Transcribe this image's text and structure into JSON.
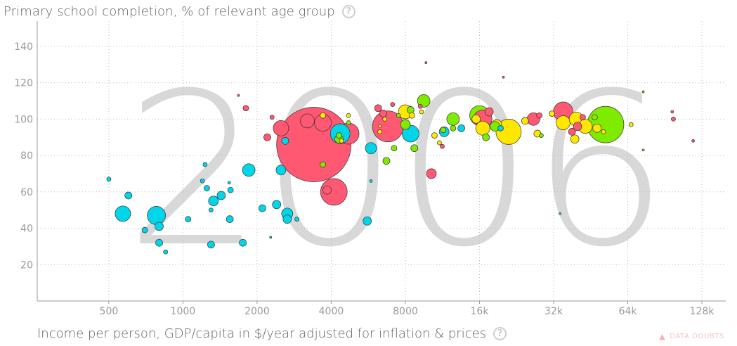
{
  "y_axis": {
    "label": "Primary school completion, % of relevant age group",
    "help_icon": "question-circle-icon"
  },
  "x_axis": {
    "label": "Income per person, GDP/capita in $/year adjusted for inflation & prices",
    "help_icon": "question-circle-icon"
  },
  "data_doubts": {
    "label": "DATA DOUBTS",
    "icon": "warning-triangle-icon"
  },
  "colors": {
    "asia": "#ff5872",
    "africa": "#00d5e9",
    "europe": "#ffe700",
    "americas": "#7feb00",
    "watermark": "#d8d8d8",
    "grid": "#bdbdbd",
    "tick_text": "#9a9a9a"
  },
  "chart_data": {
    "type": "scatter",
    "xscale": "log",
    "xlim": [
      256,
      160000
    ],
    "ylim": [
      0,
      150
    ],
    "x_ticks": [
      500,
      1000,
      2000,
      4000,
      8000,
      16000,
      32000,
      64000,
      128000
    ],
    "x_tick_labels": [
      "500",
      "1000",
      "2000",
      "4000",
      "8000",
      "16k",
      "32k",
      "64k",
      "128k"
    ],
    "y_ticks": [
      20,
      40,
      60,
      80,
      100,
      120,
      140
    ],
    "y_tick_labels": [
      "20",
      "40",
      "60",
      "80",
      "100",
      "120",
      "140"
    ],
    "grid": true,
    "watermark_year": "2006",
    "points": [
      {
        "x": 3400,
        "y": 86,
        "r": 53,
        "c": "asia"
      },
      {
        "x": 4100,
        "y": 60,
        "r": 19,
        "c": "asia"
      },
      {
        "x": 6800,
        "y": 96,
        "r": 22,
        "c": "asia"
      },
      {
        "x": 4700,
        "y": 92,
        "r": 15,
        "c": "asia"
      },
      {
        "x": 3200,
        "y": 99,
        "r": 10,
        "c": "asia"
      },
      {
        "x": 3700,
        "y": 98,
        "r": 12,
        "c": "asia"
      },
      {
        "x": 2500,
        "y": 95,
        "r": 11,
        "c": "asia"
      },
      {
        "x": 1800,
        "y": 106,
        "r": 4,
        "c": "asia"
      },
      {
        "x": 2200,
        "y": 90,
        "r": 5,
        "c": "asia"
      },
      {
        "x": 2300,
        "y": 101,
        "r": 3,
        "c": "asia"
      },
      {
        "x": 1680,
        "y": 113,
        "r": 1.5,
        "c": "asia"
      },
      {
        "x": 3850,
        "y": 61,
        "r": 6,
        "c": "asia"
      },
      {
        "x": 6200,
        "y": 106,
        "r": 5,
        "c": "asia"
      },
      {
        "x": 6500,
        "y": 103,
        "r": 5,
        "c": "asia"
      },
      {
        "x": 7100,
        "y": 108,
        "r": 3,
        "c": "asia"
      },
      {
        "x": 10200,
        "y": 70,
        "r": 7,
        "c": "asia"
      },
      {
        "x": 9200,
        "y": 107,
        "r": 3,
        "c": "asia"
      },
      {
        "x": 11300,
        "y": 85,
        "r": 3,
        "c": "asia"
      },
      {
        "x": 16500,
        "y": 100,
        "r": 13,
        "c": "asia"
      },
      {
        "x": 17500,
        "y": 104,
        "r": 6,
        "c": "asia"
      },
      {
        "x": 26500,
        "y": 100,
        "r": 9,
        "c": "asia"
      },
      {
        "x": 28000,
        "y": 102,
        "r": 4,
        "c": "asia"
      },
      {
        "x": 35000,
        "y": 104,
        "r": 14,
        "c": "asia"
      },
      {
        "x": 38000,
        "y": 93,
        "r": 5,
        "c": "asia"
      },
      {
        "x": 40000,
        "y": 96,
        "r": 6,
        "c": "asia"
      },
      {
        "x": 42000,
        "y": 101,
        "r": 4,
        "c": "asia"
      },
      {
        "x": 98000,
        "y": 100,
        "r": 3,
        "c": "asia"
      },
      {
        "x": 97000,
        "y": 104,
        "r": 2,
        "c": "asia"
      },
      {
        "x": 118000,
        "y": 88,
        "r": 2,
        "c": "asia"
      },
      {
        "x": 9700,
        "y": 131,
        "r": 1.5,
        "c": "asia"
      },
      {
        "x": 20000,
        "y": 123,
        "r": 1.5,
        "c": "asia"
      },
      {
        "x": 570,
        "y": 48,
        "r": 11,
        "c": "africa"
      },
      {
        "x": 780,
        "y": 47,
        "r": 13,
        "c": "africa"
      },
      {
        "x": 600,
        "y": 58,
        "r": 5,
        "c": "africa"
      },
      {
        "x": 800,
        "y": 41,
        "r": 6,
        "c": "africa"
      },
      {
        "x": 800,
        "y": 32,
        "r": 5,
        "c": "africa"
      },
      {
        "x": 700,
        "y": 39,
        "r": 4,
        "c": "africa"
      },
      {
        "x": 850,
        "y": 27,
        "r": 3,
        "c": "africa"
      },
      {
        "x": 500,
        "y": 67,
        "r": 3,
        "c": "africa"
      },
      {
        "x": 1050,
        "y": 45,
        "r": 4,
        "c": "africa"
      },
      {
        "x": 1200,
        "y": 66,
        "r": 3,
        "c": "africa"
      },
      {
        "x": 1230,
        "y": 75,
        "r": 3,
        "c": "africa"
      },
      {
        "x": 1250,
        "y": 62,
        "r": 4,
        "c": "africa"
      },
      {
        "x": 1330,
        "y": 55,
        "r": 7,
        "c": "africa"
      },
      {
        "x": 1300,
        "y": 50,
        "r": 3,
        "c": "africa"
      },
      {
        "x": 1430,
        "y": 58,
        "r": 6,
        "c": "africa"
      },
      {
        "x": 1300,
        "y": 31,
        "r": 5,
        "c": "africa"
      },
      {
        "x": 1540,
        "y": 65,
        "r": 2,
        "c": "africa"
      },
      {
        "x": 1550,
        "y": 45,
        "r": 5,
        "c": "africa"
      },
      {
        "x": 1560,
        "y": 61,
        "r": 4,
        "c": "africa"
      },
      {
        "x": 1750,
        "y": 32,
        "r": 5,
        "c": "africa"
      },
      {
        "x": 1850,
        "y": 72,
        "r": 9,
        "c": "africa"
      },
      {
        "x": 2100,
        "y": 51,
        "r": 5,
        "c": "africa"
      },
      {
        "x": 2400,
        "y": 53,
        "r": 6,
        "c": "africa"
      },
      {
        "x": 2500,
        "y": 72,
        "r": 7,
        "c": "africa"
      },
      {
        "x": 2650,
        "y": 48,
        "r": 8,
        "c": "africa"
      },
      {
        "x": 2650,
        "y": 45,
        "r": 6,
        "c": "africa"
      },
      {
        "x": 2600,
        "y": 88,
        "r": 5,
        "c": "africa"
      },
      {
        "x": 2900,
        "y": 45,
        "r": 3,
        "c": "africa"
      },
      {
        "x": 2270,
        "y": 35,
        "r": 1.5,
        "c": "africa"
      },
      {
        "x": 4350,
        "y": 92,
        "r": 14,
        "c": "africa"
      },
      {
        "x": 5600,
        "y": 44,
        "r": 6,
        "c": "africa"
      },
      {
        "x": 5800,
        "y": 84,
        "r": 8,
        "c": "africa"
      },
      {
        "x": 5800,
        "y": 66,
        "r": 2,
        "c": "africa"
      },
      {
        "x": 8400,
        "y": 92,
        "r": 12,
        "c": "africa"
      },
      {
        "x": 11500,
        "y": 93,
        "r": 7,
        "c": "africa"
      },
      {
        "x": 13500,
        "y": 95,
        "r": 5,
        "c": "africa"
      },
      {
        "x": 19500,
        "y": 95,
        "r": 4,
        "c": "africa"
      },
      {
        "x": 34000,
        "y": 48,
        "r": 1.5,
        "c": "africa"
      },
      {
        "x": 8000,
        "y": 104,
        "r": 10,
        "c": "europe"
      },
      {
        "x": 8500,
        "y": 102,
        "r": 4,
        "c": "europe"
      },
      {
        "x": 10500,
        "y": 91,
        "r": 4,
        "c": "europe"
      },
      {
        "x": 11000,
        "y": 87,
        "r": 3,
        "c": "europe"
      },
      {
        "x": 15500,
        "y": 100,
        "r": 6,
        "c": "europe"
      },
      {
        "x": 16500,
        "y": 95,
        "r": 10,
        "c": "europe"
      },
      {
        "x": 21000,
        "y": 93,
        "r": 18,
        "c": "europe"
      },
      {
        "x": 18800,
        "y": 97,
        "r": 7,
        "c": "europe"
      },
      {
        "x": 24500,
        "y": 99,
        "r": 5,
        "c": "europe"
      },
      {
        "x": 27500,
        "y": 92,
        "r": 5,
        "c": "europe"
      },
      {
        "x": 35000,
        "y": 98,
        "r": 10,
        "c": "europe"
      },
      {
        "x": 39500,
        "y": 100,
        "r": 10,
        "c": "europe"
      },
      {
        "x": 43000,
        "y": 96,
        "r": 10,
        "c": "europe"
      },
      {
        "x": 39000,
        "y": 89,
        "r": 6,
        "c": "europe"
      },
      {
        "x": 48000,
        "y": 95,
        "r": 6,
        "c": "europe"
      },
      {
        "x": 51000,
        "y": 93,
        "r": 3,
        "c": "europe"
      },
      {
        "x": 66000,
        "y": 97,
        "r": 3,
        "c": "europe"
      },
      {
        "x": 31500,
        "y": 103,
        "r": 4,
        "c": "europe"
      },
      {
        "x": 4400,
        "y": 88,
        "r": 3,
        "c": "europe"
      },
      {
        "x": 4700,
        "y": 102,
        "r": 3,
        "c": "europe"
      },
      {
        "x": 3700,
        "y": 102,
        "r": 4,
        "c": "europe"
      },
      {
        "x": 6300,
        "y": 93,
        "r": 3,
        "c": "europe"
      },
      {
        "x": 6300,
        "y": 96,
        "r": 2,
        "c": "europe"
      },
      {
        "x": 6600,
        "y": 100,
        "r": 3,
        "c": "europe"
      },
      {
        "x": 9300,
        "y": 104,
        "r": 3,
        "c": "europe"
      },
      {
        "x": 9500,
        "y": 110,
        "r": 9,
        "c": "americas"
      },
      {
        "x": 8400,
        "y": 105,
        "r": 5,
        "c": "americas"
      },
      {
        "x": 8000,
        "y": 97,
        "r": 7,
        "c": "americas"
      },
      {
        "x": 7500,
        "y": 102,
        "r": 3,
        "c": "americas"
      },
      {
        "x": 4700,
        "y": 98,
        "r": 3,
        "c": "americas"
      },
      {
        "x": 4300,
        "y": 89,
        "r": 6,
        "c": "americas"
      },
      {
        "x": 4300,
        "y": 91,
        "r": 4,
        "c": "americas"
      },
      {
        "x": 3700,
        "y": 75,
        "r": 4,
        "c": "americas"
      },
      {
        "x": 6700,
        "y": 77,
        "r": 5,
        "c": "americas"
      },
      {
        "x": 7200,
        "y": 84,
        "r": 4,
        "c": "americas"
      },
      {
        "x": 8700,
        "y": 84,
        "r": 5,
        "c": "americas"
      },
      {
        "x": 11400,
        "y": 94,
        "r": 4,
        "c": "americas"
      },
      {
        "x": 12500,
        "y": 100,
        "r": 9,
        "c": "americas"
      },
      {
        "x": 12500,
        "y": 95,
        "r": 4,
        "c": "americas"
      },
      {
        "x": 16000,
        "y": 102,
        "r": 14,
        "c": "americas"
      },
      {
        "x": 17000,
        "y": 90,
        "r": 5,
        "c": "americas"
      },
      {
        "x": 18500,
        "y": 96,
        "r": 7,
        "c": "americas"
      },
      {
        "x": 52000,
        "y": 97,
        "r": 26,
        "c": "americas"
      },
      {
        "x": 28500,
        "y": 91,
        "r": 3,
        "c": "americas"
      },
      {
        "x": 47000,
        "y": 101,
        "r": 4,
        "c": "americas"
      },
      {
        "x": 74000,
        "y": 115,
        "r": 1.5,
        "c": "americas"
      },
      {
        "x": 74000,
        "y": 83,
        "r": 1.5,
        "c": "americas"
      }
    ]
  }
}
